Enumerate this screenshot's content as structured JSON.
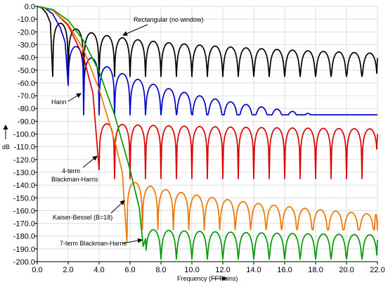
{
  "chart_data": {
    "type": "line",
    "title": "",
    "xlabel": "Frequency (FFT bins)",
    "ylabel": "dB",
    "xlim": [
      0,
      22
    ],
    "ylim": [
      -200,
      0
    ],
    "x_ticks": [
      "0.0",
      "2.0",
      "4.0",
      "6.0",
      "8.0",
      "10.0",
      "12.0",
      "14.0",
      "16.0",
      "18.0",
      "20.0",
      "22.0"
    ],
    "y_ticks": [
      "0.0",
      "-10.0",
      "-20.0",
      "-30.0",
      "-40.0",
      "-50.0",
      "-60.0",
      "-70.0",
      "-80.0",
      "-90.0",
      "-100.0",
      "-110.0",
      "-120.0",
      "-130.0",
      "-140.0",
      "-150.0",
      "-160.0",
      "-170.0",
      "-180.0",
      "-190.0",
      "-200.0"
    ],
    "grid": true,
    "series": [
      {
        "id": "rect",
        "color": "#000000",
        "first_null": 1,
        "mainlobe_points": [
          [
            0,
            0
          ],
          [
            0.3,
            -1.3
          ],
          [
            0.6,
            -5.5
          ],
          [
            0.85,
            -13
          ],
          [
            1,
            -55
          ]
        ],
        "sidelobe_peaks_db": [
          [
            1.5,
            -13.3
          ],
          [
            22,
            -36.8
          ]
        ],
        "null_depth_db": -55
      },
      {
        "id": "hann",
        "color": "#0000cc",
        "first_null": 2,
        "mainlobe_points": [
          [
            0,
            0
          ],
          [
            0.5,
            -1.4
          ],
          [
            1,
            -6
          ],
          [
            1.5,
            -17
          ],
          [
            1.8,
            -28
          ],
          [
            2,
            -62
          ]
        ],
        "sidelobe_peaks_db": [
          [
            2.5,
            -31.5
          ],
          [
            22,
            -90
          ]
        ],
        "null_depth_db": -85
      },
      {
        "id": "bh4",
        "color": "#dd0000",
        "first_null": 4,
        "mainlobe_points": [
          [
            0,
            0
          ],
          [
            1,
            -3
          ],
          [
            2,
            -15
          ],
          [
            3,
            -40
          ],
          [
            3.6,
            -68
          ],
          [
            4,
            -128
          ]
        ],
        "sidelobe_peaks_db": [
          [
            4.5,
            -92
          ],
          [
            22,
            -96
          ]
        ],
        "null_depth_db": -135
      },
      {
        "id": "kb18",
        "color": "#ee7700",
        "first_null": 5.8,
        "mainlobe_points": [
          [
            0,
            0
          ],
          [
            1,
            -3
          ],
          [
            2,
            -14
          ],
          [
            3,
            -34
          ],
          [
            4,
            -65
          ],
          [
            5,
            -105
          ],
          [
            5.5,
            -130
          ],
          [
            5.8,
            -185
          ]
        ],
        "sidelobe_peaks_db": [
          [
            6.3,
            -138
          ],
          [
            22,
            -163
          ]
        ],
        "null_depth_db": -175
      },
      {
        "id": "bh7",
        "color": "#009900",
        "first_null": 7,
        "mainlobe_points": [
          [
            0,
            0
          ],
          [
            1,
            -2.5
          ],
          [
            2,
            -11
          ],
          [
            3,
            -27
          ],
          [
            4,
            -51
          ],
          [
            5,
            -85
          ],
          [
            6,
            -128
          ],
          [
            6.6,
            -158
          ],
          [
            6.85,
            -188
          ],
          [
            7,
            -182
          ]
        ],
        "sidelobe_peaks_db": [
          [
            7.5,
            -175
          ],
          [
            22,
            -179
          ]
        ],
        "null_depth_db": -198
      }
    ],
    "annotations": [
      {
        "id": "rect",
        "lines": [
          "Rectangular (no window)"
        ]
      },
      {
        "id": "hann",
        "lines": [
          "Hann"
        ]
      },
      {
        "id": "bh4",
        "lines": [
          "4-term",
          "Blackman-Harris"
        ]
      },
      {
        "id": "kb18",
        "lines": [
          "Kaiser-Bessel (B=18)"
        ]
      },
      {
        "id": "bh7",
        "lines": [
          "7-term Blackman-Harris"
        ]
      }
    ]
  }
}
